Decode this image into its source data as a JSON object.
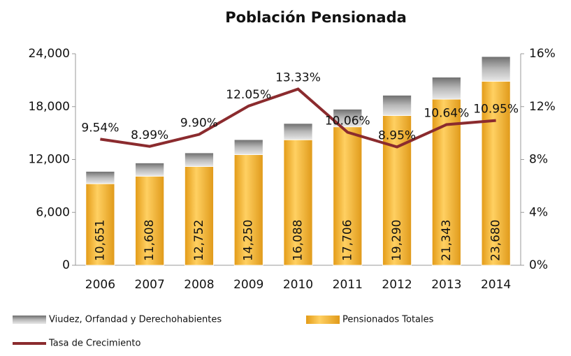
{
  "chart_data": {
    "type": "bar",
    "title": "Población Pensionada",
    "categories": [
      "2006",
      "2007",
      "2008",
      "2009",
      "2010",
      "2011",
      "2012",
      "2013",
      "2014"
    ],
    "series": [
      {
        "name": "Pensionados Totales",
        "color": "#f2b233",
        "values": [
          9251,
          10108,
          11202,
          12550,
          14238,
          15706,
          16990,
          18843,
          20880
        ]
      },
      {
        "name": "Viudez, Orfandad y Derechohabientes",
        "color": "#8c8c8c",
        "values": [
          1400,
          1500,
          1550,
          1700,
          1850,
          2000,
          2300,
          2500,
          2800
        ]
      },
      {
        "name": "Tasa de Crecimiento",
        "color": "#8b2b2e",
        "type": "line",
        "axis": "y2",
        "values": [
          9.54,
          8.99,
          9.9,
          12.05,
          13.33,
          10.06,
          8.95,
          10.64,
          10.95
        ],
        "value_labels": [
          "9.54%",
          "8.99%",
          "9.90%",
          "12.05%",
          "13.33%",
          "10.06%",
          "8.95%",
          "10.64%",
          "10.95%"
        ]
      }
    ],
    "totals": {
      "values": [
        10651,
        11608,
        12752,
        14250,
        16088,
        17706,
        19290,
        21343,
        23680
      ],
      "value_labels": [
        "10,651",
        "11,608",
        "12,752",
        "14,250",
        "16,088",
        "17,706",
        "19,290",
        "21,343",
        "23,680"
      ]
    },
    "ylim": [
      0,
      24000
    ],
    "yticks": [
      0,
      {
        "value": 6000,
        "label": "6,000"
      },
      {
        "value": 12000,
        "label": "12,000"
      },
      {
        "value": 18000,
        "label": "18,000"
      },
      {
        "value": 24000,
        "label": "24,000"
      }
    ],
    "y2lim": [
      0,
      16
    ],
    "y2ticks": [
      {
        "value": 0,
        "label": "0%"
      },
      {
        "value": 4,
        "label": "4%"
      },
      {
        "value": 8,
        "label": "8%"
      },
      {
        "value": 12,
        "label": "12%"
      },
      {
        "value": 16,
        "label": "16%"
      }
    ],
    "grid": false,
    "stacked": true,
    "legend": "bottom"
  }
}
